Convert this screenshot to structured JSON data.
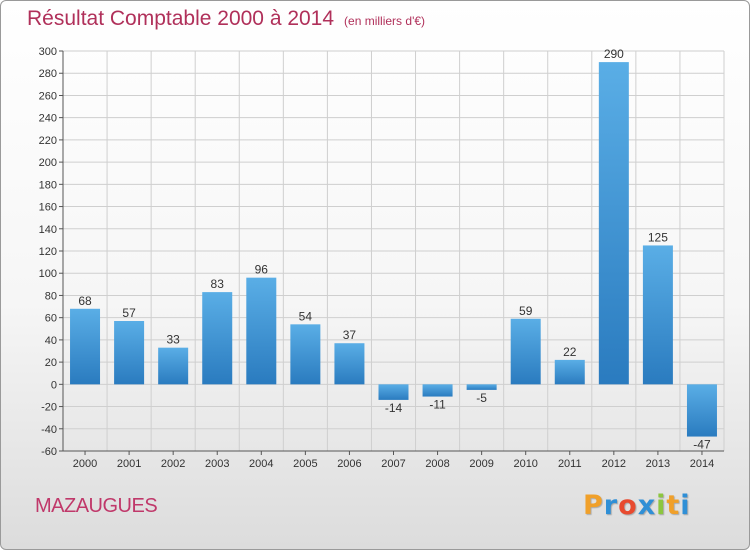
{
  "chart_data": {
    "type": "bar",
    "title": "Résultat Comptable 2000 à 2014",
    "subtitle": "(en milliers d'€)",
    "categories": [
      "2000",
      "2001",
      "2002",
      "2003",
      "2004",
      "2005",
      "2006",
      "2007",
      "2008",
      "2009",
      "2010",
      "2011",
      "2012",
      "2013",
      "2014"
    ],
    "values": [
      68,
      57,
      33,
      83,
      96,
      54,
      37,
      -14,
      -11,
      -5,
      59,
      22,
      290,
      125,
      -47
    ],
    "value_labels": [
      "68",
      "57",
      "33",
      "83",
      "96",
      "54",
      "37",
      "-14",
      "-11",
      "-5",
      "59",
      "22",
      "290",
      "125",
      "-47"
    ],
    "ylim": [
      -60,
      300
    ],
    "ytick_step": 20,
    "grid": true,
    "xlabel": "",
    "ylabel": "",
    "bar_color_light": "#5aaee6",
    "bar_color_dark": "#2a7bbf"
  },
  "footer": {
    "town": "MAZAUGUES",
    "logo_letters": [
      "P",
      "r",
      "o",
      "x",
      "i",
      "t",
      "i"
    ],
    "logo_colors": [
      "#f0a02a",
      "#2f8fd6",
      "#e84a2f",
      "#2f8fd6",
      "#8cc63f",
      "#f0a02a",
      "#2f8fd6"
    ]
  },
  "colors": {
    "title": "#b0305a",
    "town": "#c0386a",
    "grid": "#cfcfcf"
  }
}
